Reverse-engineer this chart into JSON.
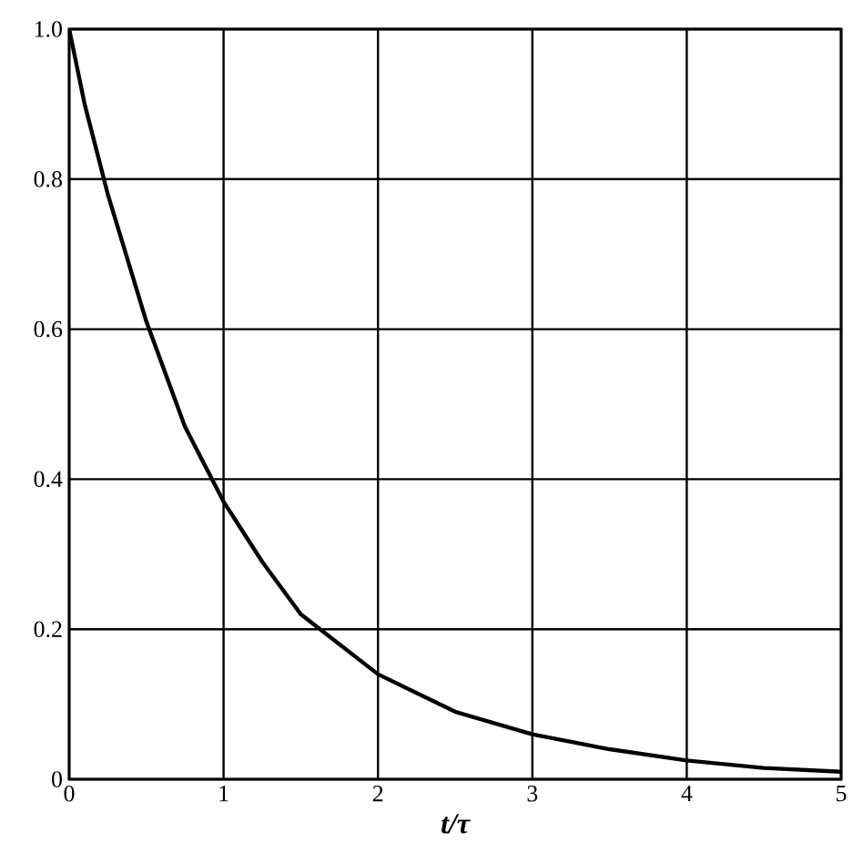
{
  "chart_data": {
    "type": "line",
    "xlabel": "t/τ",
    "x": [
      0,
      0.1,
      0.25,
      0.5,
      0.75,
      1,
      1.25,
      1.5,
      2,
      2.5,
      3,
      3.5,
      4,
      4.5,
      5
    ],
    "values": [
      1.0,
      0.9,
      0.78,
      0.61,
      0.47,
      0.37,
      0.29,
      0.22,
      0.14,
      0.09,
      0.06,
      0.04,
      0.025,
      0.015,
      0.01
    ],
    "color": "#000000",
    "xlim": [
      0,
      5
    ],
    "ylim": [
      0,
      1
    ],
    "xticks": [
      0,
      1,
      2,
      3,
      4,
      5
    ],
    "yticks": [
      0,
      0.2,
      0.4,
      0.6,
      0.8,
      {
        "value": 1,
        "label": "1.0"
      }
    ],
    "grid": true,
    "marker": "none",
    "line_style": "solid"
  }
}
